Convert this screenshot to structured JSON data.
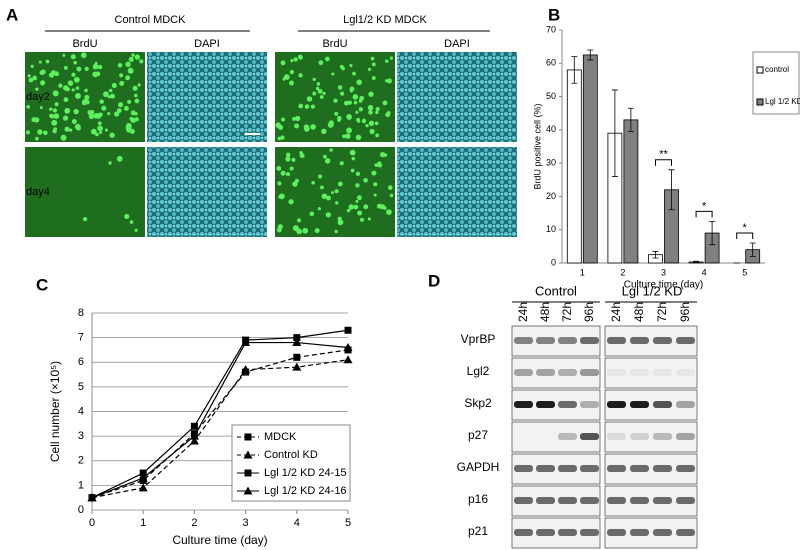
{
  "panels": {
    "A": {
      "letter": "A",
      "groups": [
        "Control MDCK",
        "Lgl1/2 KD MDCK"
      ],
      "stains": [
        "BrdU",
        "DAPI",
        "BrdU",
        "DAPI"
      ],
      "rows": [
        "day2",
        "day4"
      ]
    },
    "D": {
      "letter": "D",
      "groups": [
        "Control",
        "Lgl 1/2 KD"
      ],
      "lanes": [
        "24h",
        "48h",
        "72h",
        "96h",
        "24h",
        "48h",
        "72h",
        "96h"
      ],
      "proteins": [
        "VprBP",
        "Lgl2",
        "Skp2",
        "p27",
        "GAPDH",
        "p16",
        "p21"
      ]
    }
  },
  "chart_data": [
    {
      "type": "bar",
      "letter": "B",
      "ylabel": "BrdU positive cell (%)",
      "xlabel": "Culture time (day)",
      "categories": [
        "1",
        "2",
        "3",
        "4",
        "5"
      ],
      "series": [
        {
          "name": "control",
          "color": "#ffffff",
          "values": [
            58,
            39,
            2.5,
            0.3,
            0
          ],
          "errors": [
            4,
            13,
            1,
            0.2,
            0
          ]
        },
        {
          "name": "Lgl 1/2 KD",
          "color": "#808080",
          "values": [
            62.5,
            43,
            22,
            9,
            4
          ],
          "errors": [
            1.5,
            3.5,
            6,
            3.5,
            2
          ]
        }
      ],
      "annotations": [
        null,
        null,
        "**",
        "*",
        "*"
      ],
      "ylim": [
        0,
        70
      ],
      "yticks": [
        0,
        10,
        20,
        30,
        40,
        50,
        60,
        70
      ],
      "legend": "right"
    },
    {
      "type": "line",
      "letter": "C",
      "ylabel": "Cell number (×10⁵)",
      "xlabel": "Culture time (day)",
      "x": [
        0,
        1,
        2,
        3,
        4,
        5
      ],
      "series": [
        {
          "name": "MDCK",
          "color": "#000000",
          "dash": true,
          "marker": "square",
          "values": [
            0.5,
            1.2,
            3.1,
            5.6,
            6.2,
            6.5
          ]
        },
        {
          "name": "Control KD",
          "color": "#000000",
          "dash": true,
          "marker": "triangle",
          "values": [
            0.5,
            0.9,
            2.8,
            5.7,
            5.8,
            6.1
          ]
        },
        {
          "name": "Lgl 1/2 KD 24-15",
          "color": "#000000",
          "dash": false,
          "marker": "square",
          "values": [
            0.5,
            1.5,
            3.4,
            6.9,
            7.0,
            7.3
          ]
        },
        {
          "name": "Lgl 1/2 KD 24-16",
          "color": "#000000",
          "dash": false,
          "marker": "triangle",
          "values": [
            0.5,
            1.3,
            3.0,
            6.8,
            6.8,
            6.6
          ]
        }
      ],
      "xlim": [
        0,
        5
      ],
      "xticks": [
        0,
        1,
        2,
        3,
        4,
        5
      ],
      "ylim": [
        0,
        8
      ],
      "yticks": [
        0,
        1,
        2,
        3,
        4,
        5,
        6,
        7,
        8
      ],
      "grid": true,
      "legend": "lower right"
    }
  ]
}
